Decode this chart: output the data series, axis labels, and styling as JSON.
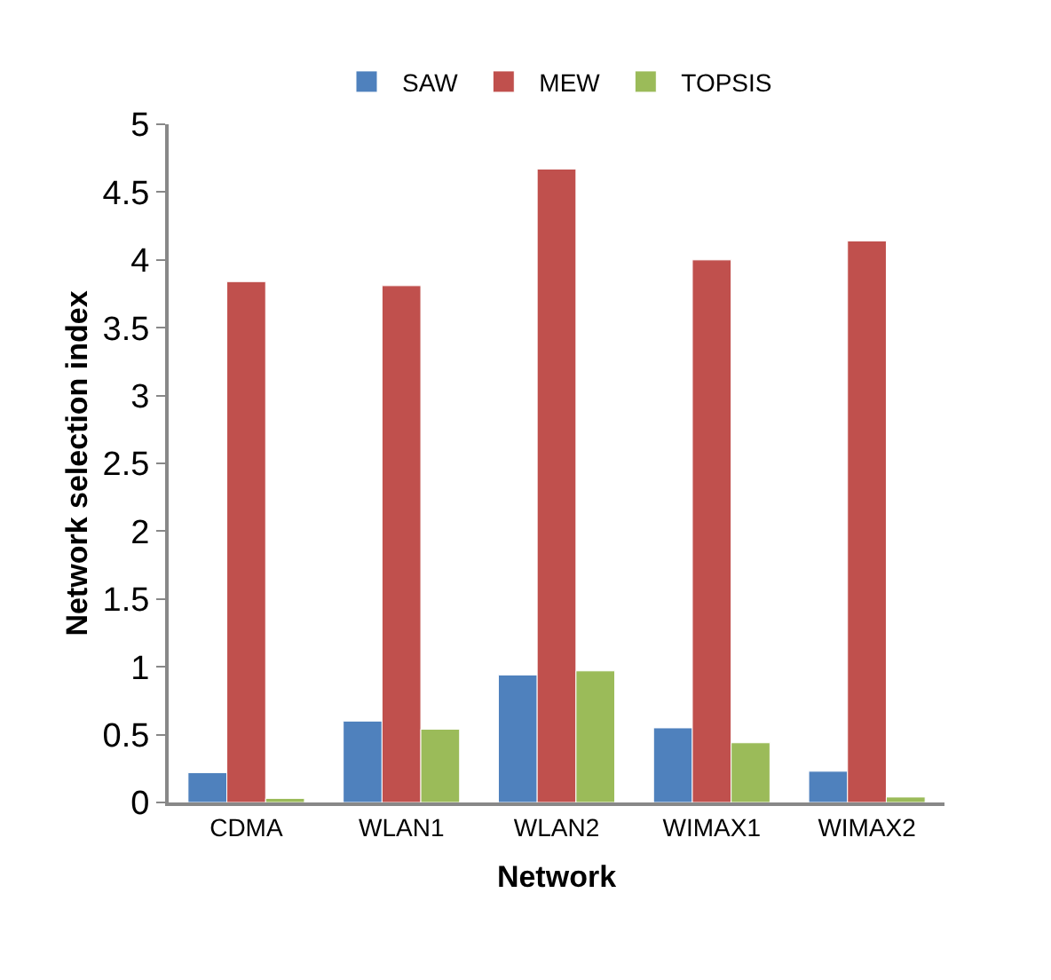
{
  "chart_data": {
    "type": "bar",
    "xlabel": "Network",
    "ylabel": "Network selection index",
    "categories": [
      "CDMA",
      "WLAN1",
      "WLAN2",
      "WIMAX1",
      "WIMAX2"
    ],
    "series": [
      {
        "name": "SAW",
        "color": "#4f81bd",
        "values": [
          0.22,
          0.6,
          0.94,
          0.55,
          0.23
        ]
      },
      {
        "name": "MEW",
        "color": "#c0504d",
        "values": [
          3.84,
          3.81,
          4.67,
          4.0,
          4.14
        ]
      },
      {
        "name": "TOPSIS",
        "color": "#9bbb59",
        "values": [
          0.03,
          0.54,
          0.97,
          0.44,
          0.04
        ]
      }
    ],
    "ylim": [
      0,
      5
    ],
    "yticks": [
      0,
      0.5,
      1,
      1.5,
      2,
      2.5,
      3,
      3.5,
      4,
      4.5,
      5
    ],
    "legend": "top"
  }
}
